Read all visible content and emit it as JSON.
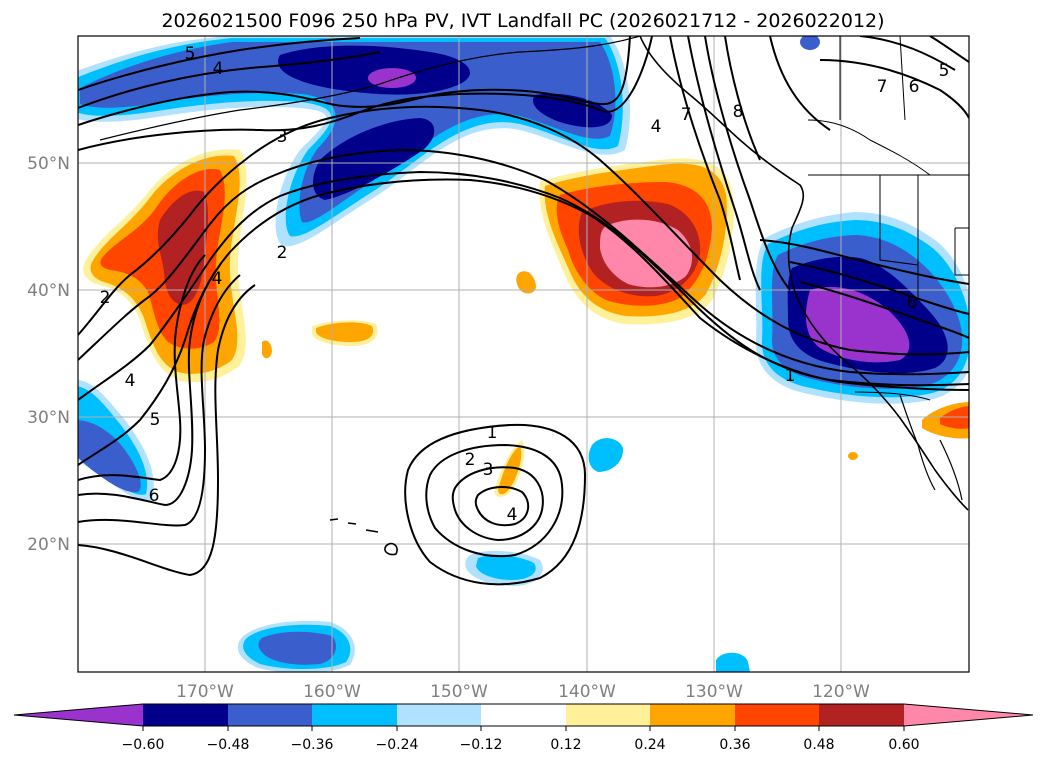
{
  "title": "2026021500 F096 250 hPa PV, IVT Landfall PC (2026021712 - 2026022012)",
  "longitude_ticks": [
    "170°W",
    "160°W",
    "150°W",
    "140°W",
    "130°W",
    "120°W"
  ],
  "latitude_ticks": [
    "20°N",
    "30°N",
    "40°N",
    "50°N"
  ],
  "contour_labels": [
    "1",
    "2",
    "3",
    "4",
    "5",
    "6",
    "7",
    "8"
  ],
  "colorbar": {
    "tick_labels": [
      "−0.60",
      "−0.48",
      "−0.36",
      "−0.24",
      "−0.12",
      "0.12",
      "0.24",
      "0.36",
      "0.48",
      "0.60"
    ],
    "colors": [
      "#9a32cd",
      "#00008b",
      "#3a5fcd",
      "#00bfff",
      "#b0e2ff",
      "#ffffff",
      "#fff09a",
      "#ffa500",
      "#ff4500",
      "#b22222",
      "#ff88aa"
    ]
  },
  "chart_data": {
    "type": "heatmap",
    "title": "2026021500 F096 250 hPa PV, IVT Landfall PC (2026021712 - 2026022012)",
    "x_ticks": [
      "170°W",
      "160°W",
      "150°W",
      "140°W",
      "130°W",
      "120°W"
    ],
    "y_ticks": [
      "20°N",
      "30°N",
      "40°N",
      "50°N"
    ],
    "color_levels": [
      -0.6,
      -0.48,
      -0.36,
      -0.24,
      -0.12,
      0.12,
      0.24,
      0.36,
      0.48,
      0.6
    ],
    "contour_levels": [
      1,
      2,
      3,
      4,
      5,
      6,
      7,
      8
    ],
    "extend": "both"
  }
}
